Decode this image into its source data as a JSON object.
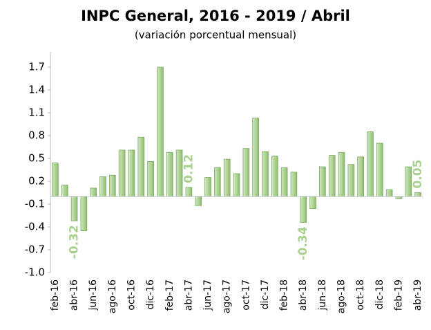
{
  "chart_data": {
    "type": "bar",
    "title": "INPC General, 2016 - 2019 / Abril",
    "subtitle": "(variación porcentual mensual)",
    "categories": [
      "feb-16",
      null,
      "abr-16",
      null,
      "jun-16",
      null,
      "ago-16",
      null,
      "oct-16",
      null,
      "dic-16",
      null,
      "feb-17",
      null,
      "abr-17",
      null,
      "jun-17",
      null,
      "ago-17",
      null,
      "oct-17",
      null,
      "dic-17",
      null,
      "feb-18",
      null,
      "abr-18",
      null,
      "jun-18",
      null,
      "ago-18",
      null,
      "oct-18",
      null,
      "dic-18",
      null,
      "feb-19",
      null,
      "abr-19"
    ],
    "values": [
      0.44,
      0.15,
      -0.32,
      -0.45,
      0.11,
      0.26,
      0.28,
      0.61,
      0.61,
      0.78,
      0.46,
      1.7,
      0.58,
      0.61,
      0.12,
      -0.12,
      0.25,
      0.38,
      0.49,
      0.3,
      0.63,
      1.03,
      0.59,
      0.53,
      0.38,
      0.32,
      -0.34,
      -0.16,
      0.39,
      0.54,
      0.58,
      0.42,
      0.52,
      0.85,
      0.7,
      0.09,
      -0.03,
      0.39,
      0.05
    ],
    "value_labels": [
      null,
      null,
      "-0.32",
      null,
      null,
      null,
      null,
      null,
      null,
      null,
      null,
      null,
      null,
      null,
      "0.12",
      null,
      null,
      null,
      null,
      null,
      null,
      null,
      null,
      null,
      null,
      null,
      "-0.34",
      null,
      null,
      null,
      null,
      null,
      null,
      null,
      null,
      null,
      null,
      null,
      "0.05"
    ],
    "color": "#a9d18e",
    "ylim": [
      -1.0,
      1.9
    ],
    "yticks": [
      {
        "value": -1.0,
        "label": "-1.0"
      },
      -0.7,
      -0.4,
      -0.1,
      0.2,
      0.5,
      0.8,
      1.1,
      1.4,
      1.7
    ],
    "grid": false
  }
}
